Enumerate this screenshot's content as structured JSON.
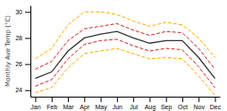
{
  "chart_data": {
    "type": "line",
    "ylabel": "Monthly Ave Temp (°C)",
    "categories": [
      "Jan",
      "Feb",
      "Mar",
      "Apr",
      "May",
      "Jun",
      "Jul",
      "Aug",
      "Sep",
      "Oct",
      "Nov",
      "Dec"
    ],
    "series": [
      {
        "color": "#ffaa00",
        "line_style": "dashed",
        "values": [
          23.8,
          24.2,
          25.7,
          26.8,
          27.0,
          27.2,
          26.8,
          26.4,
          26.5,
          26.4,
          25.1,
          23.6
        ]
      },
      {
        "color": "#ffaa00",
        "line_style": "dashed",
        "values": [
          26.4,
          27.2,
          29.0,
          30.0,
          30.0,
          29.8,
          29.3,
          28.9,
          29.2,
          29.0,
          28.0,
          26.5
        ]
      },
      {
        "color": "#cc2222",
        "line_style": "dashed",
        "values": [
          24.3,
          24.8,
          26.4,
          27.5,
          27.8,
          27.9,
          27.4,
          27.0,
          27.2,
          27.1,
          25.8,
          24.2
        ]
      },
      {
        "color": "#cc2222",
        "line_style": "dashed",
        "values": [
          25.6,
          26.2,
          27.8,
          28.7,
          28.9,
          29.1,
          28.6,
          28.2,
          28.5,
          28.4,
          27.2,
          25.6
        ]
      },
      {
        "color": "#333333",
        "line_style": "solid",
        "values": [
          24.9,
          25.4,
          27.0,
          28.0,
          28.3,
          28.5,
          28.0,
          27.6,
          27.8,
          27.8,
          26.5,
          24.9
        ]
      }
    ],
    "ylim": [
      23.5,
      30.5
    ],
    "yticks": [
      24,
      26,
      28,
      30
    ],
    "grid": false
  }
}
